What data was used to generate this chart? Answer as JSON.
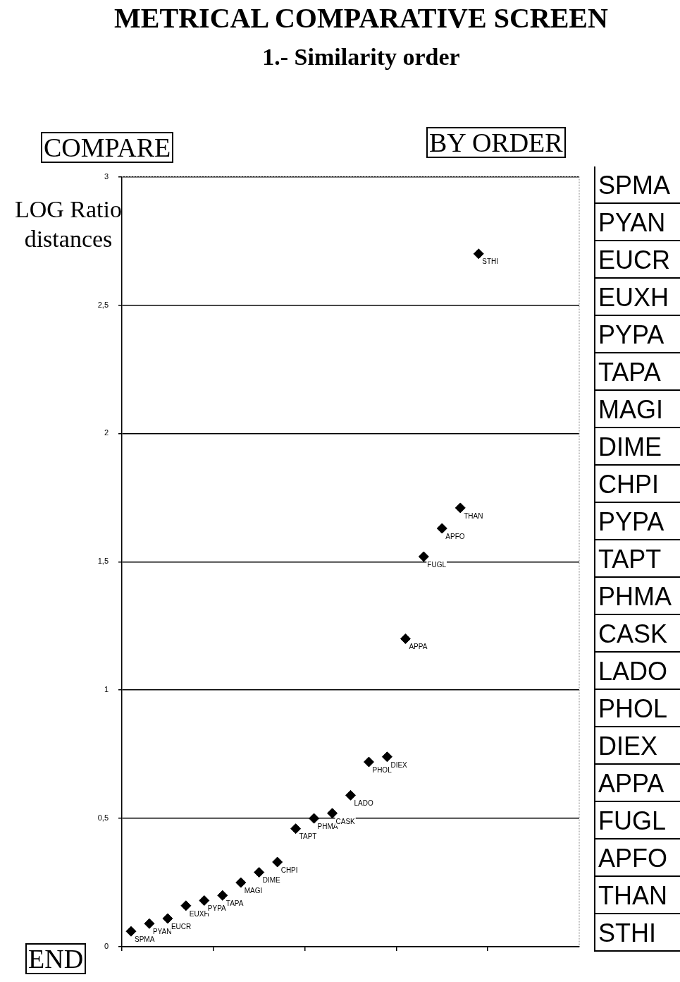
{
  "chart_data": [
    {
      "type": "scatter",
      "title": "METRICAL COMPARATIVE SCREEN",
      "subtitle": "1.- Similarity order",
      "ylabel": "LOG Ratio distances",
      "categories": [
        null,
        null,
        null,
        null,
        null,
        null,
        null,
        null,
        null,
        null,
        null,
        null,
        null,
        null,
        null,
        null,
        null,
        null,
        null,
        null,
        null,
        null,
        null,
        null,
        null
      ],
      "series": [
        {
          "color": "#000000",
          "values": [
            0.06,
            0.09,
            0.11,
            0.16,
            0.18,
            0.2,
            0.25,
            0.29,
            0.33,
            0.46,
            0.5,
            0.52,
            0.59,
            0.72,
            0.74,
            1.2,
            1.52,
            1.63,
            1.71,
            2.7,
            null,
            null,
            null,
            null,
            null
          ],
          "value_labels": [
            "SPMA",
            "PYAN",
            "EUCR",
            "EUXH",
            "PYPA",
            "TAPA",
            "MAGI",
            "DIME",
            "CHPI",
            "TAPT",
            "PHMA",
            "CASK",
            "LADO",
            "PHOL",
            "DIEX",
            "APPA",
            "FUGL",
            "APFO",
            "THAN",
            "STHI",
            null,
            null,
            null,
            null,
            null
          ]
        }
      ],
      "ylim": [
        0,
        3
      ],
      "yticks": [
        0,
        {
          "value": 0.5,
          "label": "0,5"
        },
        1,
        {
          "value": 1.5,
          "label": "1,5"
        },
        2,
        {
          "value": 2.5,
          "label": "2,5"
        },
        3
      ],
      "tick_labels": "y",
      "grid": "y",
      "legend": false,
      "marker": "diamond",
      "annotations": [
        "COMPARE",
        "BY ORDER",
        "END"
      ]
    },
    {
      "type": "other",
      "annotations": [
        "SPMA",
        "PYAN",
        "EUCR",
        "EUXH",
        "PYPA",
        "TAPA",
        "MAGI",
        "DIME",
        "CHPI",
        "PYPA",
        "TAPT",
        "PHMA",
        "CASK",
        "LADO",
        "PHOL",
        "DIEX",
        "APPA",
        "FUGL",
        "APFO",
        "THAN",
        "STHI"
      ]
    }
  ]
}
